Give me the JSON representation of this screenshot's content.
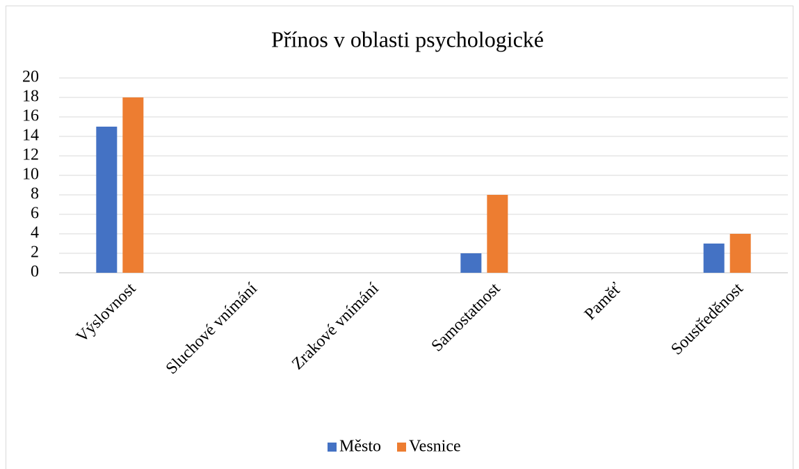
{
  "chart_data": {
    "type": "bar",
    "title": "Přínos v oblasti psychologické",
    "categories": [
      "Výslovnost",
      "Sluchové vnímání",
      "Zrakové vnímání",
      "Samostatnost",
      "Paměť",
      "Soustředěnost"
    ],
    "series": [
      {
        "name": "Město",
        "color": "#4472c4",
        "values": [
          15,
          0,
          0,
          2,
          0,
          3
        ]
      },
      {
        "name": "Vesnice",
        "color": "#ed7d31",
        "values": [
          18,
          0,
          0,
          8,
          0,
          4
        ]
      }
    ],
    "ylim": [
      0,
      20
    ],
    "yticks": [
      0,
      2,
      4,
      6,
      8,
      10,
      12,
      14,
      16,
      18,
      20
    ],
    "grid": true,
    "legend": "bottom"
  }
}
